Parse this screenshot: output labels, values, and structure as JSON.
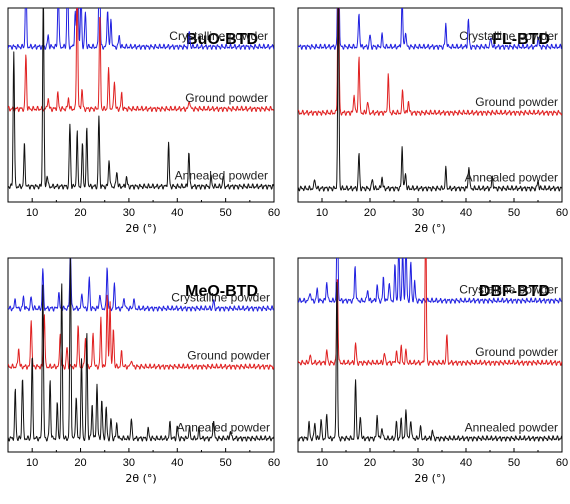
{
  "chart_data": [
    {
      "type": "line",
      "title": "BuO-BTD",
      "xlabel": "2θ (°)",
      "xlim": [
        5,
        60
      ],
      "xticks": [
        10,
        20,
        30,
        40,
        50,
        60
      ],
      "series": [
        {
          "name": "Crystalline powder",
          "color": "#2020e0",
          "baseline": 0.8,
          "peaks": [
            [
              8.7,
              0.35
            ],
            [
              13.3,
              0.06
            ],
            [
              15.4,
              0.3
            ],
            [
              17.3,
              0.38
            ],
            [
              18.9,
              0.18
            ],
            [
              19.4,
              0.8
            ],
            [
              20.1,
              0.28
            ],
            [
              21.0,
              0.18
            ],
            [
              23.9,
              0.55
            ],
            [
              25.6,
              0.2
            ],
            [
              26.3,
              0.14
            ],
            [
              28.0,
              0.06
            ],
            [
              42.5,
              0.08
            ]
          ]
        },
        {
          "name": "Ground powder",
          "color": "#e02020",
          "baseline": 0.48,
          "peaks": [
            [
              8.7,
              0.28
            ],
            [
              13.3,
              0.06
            ],
            [
              15.3,
              0.08
            ],
            [
              17.5,
              0.06
            ],
            [
              19.3,
              0.7
            ],
            [
              20.3,
              0.1
            ],
            [
              24.0,
              0.48
            ],
            [
              25.8,
              0.2
            ],
            [
              27.0,
              0.15
            ],
            [
              28.5,
              0.08
            ],
            [
              42.5,
              0.05
            ]
          ]
        },
        {
          "name": "Annealed powder",
          "color": "#111111",
          "baseline": 0.08,
          "peaks": [
            [
              6.2,
              0.7
            ],
            [
              8.4,
              0.22
            ],
            [
              12.3,
              1.0
            ],
            [
              13.1,
              0.06
            ],
            [
              17.8,
              0.32
            ],
            [
              19.3,
              0.28
            ],
            [
              20.4,
              0.22
            ],
            [
              21.3,
              0.3
            ],
            [
              23.8,
              0.36
            ],
            [
              25.9,
              0.14
            ],
            [
              27.5,
              0.08
            ],
            [
              29.5,
              0.05
            ],
            [
              38.2,
              0.22
            ],
            [
              42.4,
              0.18
            ],
            [
              47.0,
              0.05
            ],
            [
              49.5,
              0.05
            ]
          ]
        }
      ]
    },
    {
      "type": "line",
      "title": "FL-BTD",
      "xlabel": "2θ (°)",
      "xlim": [
        5,
        60
      ],
      "xticks": [
        10,
        20,
        30,
        40,
        50,
        60
      ],
      "series": [
        {
          "name": "Crystalline powder",
          "color": "#2020e0",
          "baseline": 0.8,
          "peaks": [
            [
              13.4,
              1.1
            ],
            [
              17.7,
              0.18
            ],
            [
              20.0,
              0.06
            ],
            [
              22.5,
              0.06
            ],
            [
              26.7,
              0.26
            ],
            [
              27.4,
              0.08
            ],
            [
              35.8,
              0.12
            ],
            [
              40.5,
              0.14
            ],
            [
              45.2,
              0.05
            ],
            [
              55.0,
              0.05
            ]
          ]
        },
        {
          "name": "Ground powder",
          "color": "#e02020",
          "baseline": 0.46,
          "peaks": [
            [
              13.4,
              0.95
            ],
            [
              16.7,
              0.1
            ],
            [
              17.7,
              0.3
            ],
            [
              19.5,
              0.06
            ],
            [
              23.8,
              0.2
            ],
            [
              26.8,
              0.12
            ],
            [
              28.0,
              0.06
            ]
          ]
        },
        {
          "name": "Annealed powder",
          "color": "#111111",
          "baseline": 0.07,
          "peaks": [
            [
              8.5,
              0.05
            ],
            [
              13.4,
              1.05
            ],
            [
              17.7,
              0.18
            ],
            [
              20.5,
              0.05
            ],
            [
              22.5,
              0.06
            ],
            [
              26.7,
              0.22
            ],
            [
              27.4,
              0.08
            ],
            [
              35.8,
              0.1
            ],
            [
              40.6,
              0.12
            ],
            [
              45.5,
              0.06
            ],
            [
              55.0,
              0.04
            ]
          ]
        }
      ]
    },
    {
      "type": "line",
      "title": "MeO-BTD",
      "xlabel": "2θ (°)",
      "xlim": [
        5,
        60
      ],
      "xticks": [
        10,
        20,
        30,
        40,
        50,
        60
      ],
      "series": [
        {
          "name": "Crystalline powder",
          "color": "#2020e0",
          "baseline": 0.74,
          "peaks": [
            [
              6.5,
              0.05
            ],
            [
              8.2,
              0.06
            ],
            [
              9.8,
              0.06
            ],
            [
              12.2,
              0.2
            ],
            [
              15.5,
              0.08
            ],
            [
              17.9,
              0.3
            ],
            [
              20.3,
              0.08
            ],
            [
              21.8,
              0.16
            ],
            [
              24.0,
              0.08
            ],
            [
              25.5,
              0.22
            ],
            [
              27.0,
              0.12
            ],
            [
              29.0,
              0.06
            ],
            [
              31.0,
              0.05
            ],
            [
              47.5,
              0.04
            ]
          ]
        },
        {
          "name": "Ground powder",
          "color": "#e02020",
          "baseline": 0.44,
          "peaks": [
            [
              7.2,
              0.1
            ],
            [
              9.8,
              0.25
            ],
            [
              12.5,
              0.28
            ],
            [
              15.8,
              0.18
            ],
            [
              17.2,
              0.1
            ],
            [
              19.5,
              0.22
            ],
            [
              21.0,
              0.15
            ],
            [
              22.6,
              0.18
            ],
            [
              24.2,
              0.25
            ],
            [
              25.5,
              0.38
            ],
            [
              26.1,
              0.34
            ],
            [
              26.8,
              0.2
            ],
            [
              28.5,
              0.08
            ],
            [
              30.5,
              0.04
            ]
          ]
        },
        {
          "name": "Annealed powder",
          "color": "#111111",
          "baseline": 0.07,
          "peaks": [
            [
              6.5,
              0.25
            ],
            [
              8.0,
              0.32
            ],
            [
              10.0,
              0.42
            ],
            [
              12.2,
              0.8
            ],
            [
              13.7,
              0.3
            ],
            [
              15.2,
              0.18
            ],
            [
              16.1,
              0.8
            ],
            [
              17.9,
              0.96
            ],
            [
              19.1,
              0.22
            ],
            [
              20.2,
              0.4
            ],
            [
              21.3,
              0.55
            ],
            [
              22.4,
              0.18
            ],
            [
              23.4,
              0.28
            ],
            [
              24.4,
              0.2
            ],
            [
              25.3,
              0.16
            ],
            [
              26.3,
              0.1
            ],
            [
              27.5,
              0.08
            ],
            [
              30.5,
              0.1
            ],
            [
              34.0,
              0.05
            ],
            [
              38.5,
              0.08
            ],
            [
              40.0,
              0.06
            ],
            [
              42.5,
              0.06
            ],
            [
              44.5,
              0.05
            ],
            [
              47.5,
              0.1
            ],
            [
              51.0,
              0.04
            ]
          ]
        }
      ]
    },
    {
      "type": "line",
      "title": "DBF-BTD",
      "xlabel": "2θ (°)",
      "xlim": [
        5,
        60
      ],
      "xticks": [
        10,
        20,
        30,
        40,
        50,
        60
      ],
      "series": [
        {
          "name": "Crystalline powder",
          "color": "#2020e0",
          "baseline": 0.78,
          "peaks": [
            [
              7.5,
              0.05
            ],
            [
              9.0,
              0.06
            ],
            [
              11.0,
              0.1
            ],
            [
              13.2,
              0.55
            ],
            [
              16.9,
              0.18
            ],
            [
              19.5,
              0.06
            ],
            [
              21.5,
              0.08
            ],
            [
              22.8,
              0.12
            ],
            [
              24.0,
              0.1
            ],
            [
              25.2,
              0.18
            ],
            [
              26.0,
              0.28
            ],
            [
              26.8,
              0.26
            ],
            [
              27.5,
              0.3
            ],
            [
              28.5,
              0.2
            ],
            [
              29.3,
              0.1
            ]
          ]
        },
        {
          "name": "Ground powder",
          "color": "#e02020",
          "baseline": 0.46,
          "peaks": [
            [
              7.5,
              0.04
            ],
            [
              11.0,
              0.06
            ],
            [
              13.2,
              0.45
            ],
            [
              17.0,
              0.1
            ],
            [
              23.0,
              0.05
            ],
            [
              25.5,
              0.06
            ],
            [
              26.5,
              0.08
            ],
            [
              27.5,
              0.06
            ],
            [
              31.6,
              0.75
            ],
            [
              36.0,
              0.14
            ]
          ]
        },
        {
          "name": "Annealed powder",
          "color": "#111111",
          "baseline": 0.07,
          "peaks": [
            [
              7.3,
              0.08
            ],
            [
              8.5,
              0.08
            ],
            [
              9.8,
              0.1
            ],
            [
              11.0,
              0.12
            ],
            [
              13.1,
              0.82
            ],
            [
              17.0,
              0.3
            ],
            [
              18.0,
              0.12
            ],
            [
              21.5,
              0.12
            ],
            [
              22.5,
              0.06
            ],
            [
              25.5,
              0.08
            ],
            [
              26.5,
              0.1
            ],
            [
              27.5,
              0.15
            ],
            [
              28.5,
              0.1
            ],
            [
              30.5,
              0.06
            ],
            [
              33.0,
              0.04
            ]
          ]
        }
      ]
    }
  ]
}
